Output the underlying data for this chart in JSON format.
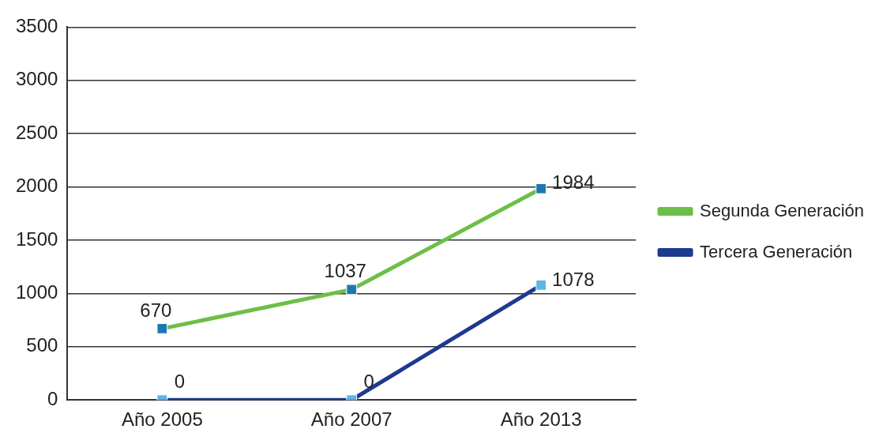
{
  "chart_data": {
    "type": "line",
    "categories": [
      "Año 2005",
      "Año 2007",
      "Año 2013"
    ],
    "series": [
      {
        "name": "Segunda Generación",
        "color": "#6cbf47",
        "values": [
          670,
          1037,
          1984
        ]
      },
      {
        "name": "Tercera Generación",
        "color": "#1c3a8e",
        "values": [
          0,
          0,
          1078
        ]
      }
    ],
    "data_labels": true,
    "ylim": [
      0,
      3500
    ],
    "yticks": [
      0,
      500,
      1000,
      1500,
      2000,
      2500,
      3000,
      3500
    ],
    "grid": "y",
    "legend": "right",
    "marker": "square",
    "line_style": "solid"
  }
}
